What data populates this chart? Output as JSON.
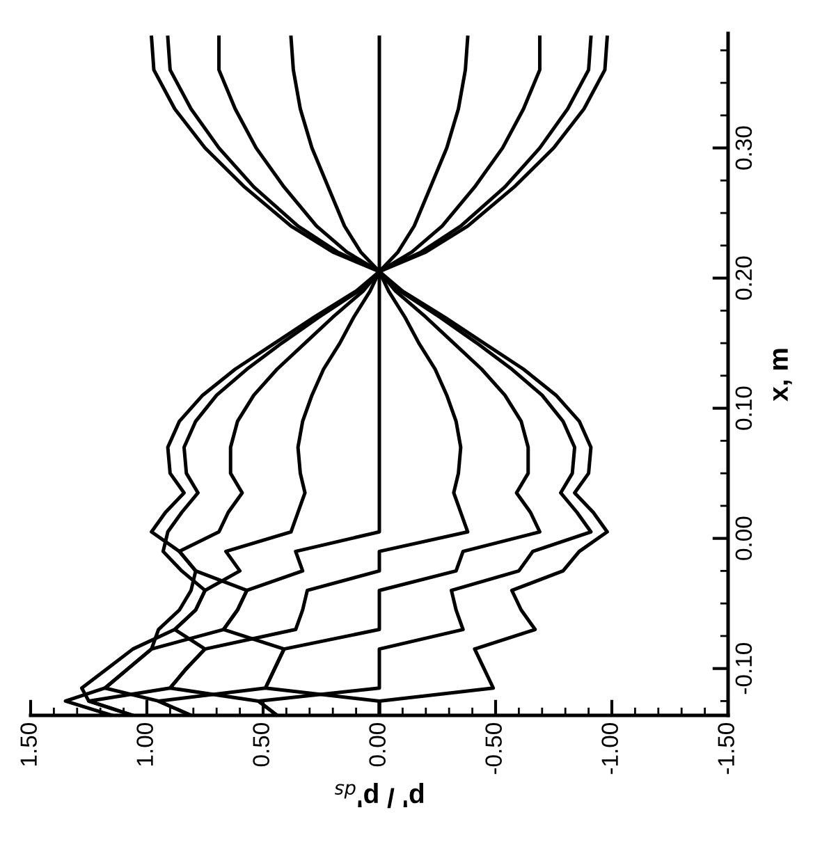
{
  "chart_data": {
    "type": "line",
    "xlabel": "p' / p'$_{ds}$",
    "ylabel": "x, m",
    "xlim": [
      1.5,
      -1.5
    ],
    "xticks": [
      {
        "value": -1.5,
        "label": "-1.50"
      },
      {
        "value": -1.4,
        "label": null
      },
      {
        "value": -1.3,
        "label": null
      },
      {
        "value": -1.2,
        "label": null
      },
      {
        "value": -1.1,
        "label": null
      },
      {
        "value": -1.0,
        "label": "-1.00"
      },
      {
        "value": -0.9,
        "label": null
      },
      {
        "value": -0.8,
        "label": null
      },
      {
        "value": -0.7,
        "label": null
      },
      {
        "value": -0.6,
        "label": null
      },
      {
        "value": -0.5,
        "label": "-0.50"
      },
      {
        "value": -0.4,
        "label": null
      },
      {
        "value": -0.3,
        "label": null
      },
      {
        "value": -0.2,
        "label": null
      },
      {
        "value": -0.1,
        "label": null
      },
      {
        "value": 0.0,
        "label": "0.00"
      },
      {
        "value": 0.1,
        "label": null
      },
      {
        "value": 0.2,
        "label": null
      },
      {
        "value": 0.3,
        "label": null
      },
      {
        "value": 0.4,
        "label": null
      },
      {
        "value": 0.5,
        "label": "0.50"
      },
      {
        "value": 0.6,
        "label": null
      },
      {
        "value": 0.7,
        "label": null
      },
      {
        "value": 0.8,
        "label": null
      },
      {
        "value": 0.9,
        "label": null
      },
      {
        "value": 1.0,
        "label": "1.00"
      },
      {
        "value": 1.1,
        "label": null
      },
      {
        "value": 1.2,
        "label": null
      },
      {
        "value": 1.3,
        "label": null
      },
      {
        "value": 1.4,
        "label": null
      },
      {
        "value": 1.5,
        "label": "1.50"
      }
    ],
    "ylim": [
      -0.136,
      0.388
    ],
    "yticks": [
      {
        "value": -0.125,
        "label": null
      },
      {
        "value": -0.1,
        "label": "-0.10"
      },
      {
        "value": -0.075,
        "label": null
      },
      {
        "value": -0.05,
        "label": null
      },
      {
        "value": -0.025,
        "label": null
      },
      {
        "value": 0.0,
        "label": "0.00"
      },
      {
        "value": 0.025,
        "label": null
      },
      {
        "value": 0.05,
        "label": null
      },
      {
        "value": 0.075,
        "label": null
      },
      {
        "value": 0.1,
        "label": "0.10"
      },
      {
        "value": 0.125,
        "label": null
      },
      {
        "value": 0.15,
        "label": null
      },
      {
        "value": 0.175,
        "label": null
      },
      {
        "value": 0.2,
        "label": "0.20"
      },
      {
        "value": 0.225,
        "label": null
      },
      {
        "value": 0.25,
        "label": null
      },
      {
        "value": 0.275,
        "label": null
      },
      {
        "value": 0.3,
        "label": "0.30"
      },
      {
        "value": 0.325,
        "label": null
      },
      {
        "value": 0.35,
        "label": null
      },
      {
        "value": 0.375,
        "label": null
      }
    ],
    "grid": false,
    "marker": "none",
    "line_style": "solid",
    "series": [
      {
        "color": "#000000",
        "x": [
          0,
          0,
          0.49,
          0.45,
          0.41,
          0.67,
          0.61,
          0.57,
          0.79,
          0.86,
          0.98,
          0.92,
          0.84,
          0.9,
          0.91,
          0.86,
          0.76,
          0.62,
          0.45,
          0.28,
          0.1,
          0,
          -0.2,
          -0.38,
          -0.58,
          -0.75,
          -0.88,
          -0.97,
          -0.98
        ],
        "values": [
          -0.136,
          -0.125,
          -0.115,
          -0.1,
          -0.085,
          -0.07,
          -0.055,
          -0.04,
          -0.025,
          -0.01,
          0.005,
          0.02,
          0.035,
          0.05,
          0.07,
          0.09,
          0.11,
          0.13,
          0.15,
          0.17,
          0.19,
          0.205,
          0.22,
          0.24,
          0.27,
          0.3,
          0.33,
          0.36,
          0.385
        ]
      },
      {
        "color": "#000000",
        "x": [
          0.44,
          0.52,
          0.9,
          0.83,
          0.75,
          0.88,
          0.79,
          0.75,
          0.85,
          0.93,
          0.91,
          0.85,
          0.78,
          0.83,
          0.84,
          0.79,
          0.7,
          0.57,
          0.42,
          0.26,
          0.09,
          0,
          -0.18,
          -0.35,
          -0.54,
          -0.69,
          -0.81,
          -0.9,
          -0.91
        ],
        "values": [
          -0.136,
          -0.125,
          -0.115,
          -0.1,
          -0.085,
          -0.07,
          -0.055,
          -0.04,
          -0.025,
          -0.01,
          0.005,
          0.02,
          0.035,
          0.05,
          0.07,
          0.09,
          0.11,
          0.13,
          0.15,
          0.17,
          0.19,
          0.205,
          0.22,
          0.24,
          0.27,
          0.3,
          0.33,
          0.36,
          0.385
        ]
      },
      {
        "color": "#000000",
        "x": [
          0.81,
          0.95,
          1.18,
          1.08,
          0.98,
          0.95,
          0.86,
          0.81,
          0.79,
          0.86,
          0.69,
          0.65,
          0.59,
          0.64,
          0.64,
          0.61,
          0.54,
          0.44,
          0.32,
          0.2,
          0.07,
          0,
          -0.14,
          -0.27,
          -0.41,
          -0.53,
          -0.62,
          -0.69,
          -0.69
        ],
        "values": [
          -0.136,
          -0.125,
          -0.115,
          -0.1,
          -0.085,
          -0.07,
          -0.055,
          -0.04,
          -0.025,
          -0.01,
          0.005,
          0.02,
          0.035,
          0.05,
          0.07,
          0.09,
          0.11,
          0.13,
          0.15,
          0.17,
          0.19,
          0.205,
          0.22,
          0.24,
          0.27,
          0.3,
          0.33,
          0.36,
          0.385
        ]
      },
      {
        "color": "#000000",
        "x": [
          1.06,
          1.25,
          1.28,
          1.17,
          1.06,
          0.88,
          0.79,
          0.75,
          0.6,
          0.66,
          0.38,
          0.35,
          0.32,
          0.34,
          0.35,
          0.33,
          0.29,
          0.24,
          0.17,
          0.11,
          0.04,
          0,
          -0.08,
          -0.15,
          -0.22,
          -0.29,
          -0.34,
          -0.37,
          -0.38
        ],
        "values": [
          -0.136,
          -0.125,
          -0.115,
          -0.1,
          -0.085,
          -0.07,
          -0.055,
          -0.04,
          -0.025,
          -0.01,
          0.005,
          0.02,
          0.035,
          0.05,
          0.07,
          0.09,
          0.11,
          0.13,
          0.15,
          0.17,
          0.19,
          0.205,
          0.22,
          0.24,
          0.27,
          0.3,
          0.33,
          0.36,
          0.385
        ]
      },
      {
        "color": "#000000",
        "x": [
          1.15,
          1.35,
          1.18,
          1.08,
          0.98,
          0.67,
          0.61,
          0.57,
          0.33,
          0.36,
          0,
          0,
          0,
          0,
          0,
          0,
          0,
          0,
          0,
          0,
          0,
          0,
          0,
          0,
          0,
          0,
          0,
          0,
          0
        ],
        "values": [
          -0.136,
          -0.125,
          -0.115,
          -0.1,
          -0.085,
          -0.07,
          -0.055,
          -0.04,
          -0.025,
          -0.01,
          0.005,
          0.02,
          0.035,
          0.05,
          0.07,
          0.09,
          0.11,
          0.13,
          0.15,
          0.17,
          0.19,
          0.205,
          0.22,
          0.24,
          0.27,
          0.3,
          0.33,
          0.36,
          0.385
        ]
      },
      {
        "color": "#000000",
        "x": [
          1.06,
          1.25,
          0.9,
          0.83,
          0.75,
          0.36,
          0.33,
          0.31,
          0,
          0,
          -0.38,
          -0.35,
          -0.32,
          -0.34,
          -0.35,
          -0.33,
          -0.29,
          -0.24,
          -0.17,
          -0.11,
          -0.04,
          0,
          0.08,
          0.15,
          0.22,
          0.29,
          0.34,
          0.37,
          0.38
        ],
        "values": [
          -0.136,
          -0.125,
          -0.115,
          -0.1,
          -0.085,
          -0.07,
          -0.055,
          -0.04,
          -0.025,
          -0.01,
          0.005,
          0.02,
          0.035,
          0.05,
          0.07,
          0.09,
          0.11,
          0.13,
          0.15,
          0.17,
          0.19,
          0.205,
          0.22,
          0.24,
          0.27,
          0.3,
          0.33,
          0.36,
          0.385
        ]
      },
      {
        "color": "#000000",
        "x": [
          0.81,
          0.95,
          0.49,
          0.45,
          0.41,
          0,
          0,
          0,
          -0.33,
          -0.36,
          -0.69,
          -0.65,
          -0.59,
          -0.64,
          -0.64,
          -0.61,
          -0.54,
          -0.44,
          -0.32,
          -0.2,
          -0.07,
          0,
          0.14,
          0.27,
          0.41,
          0.53,
          0.62,
          0.69,
          0.69
        ],
        "values": [
          -0.136,
          -0.125,
          -0.115,
          -0.1,
          -0.085,
          -0.07,
          -0.055,
          -0.04,
          -0.025,
          -0.01,
          0.005,
          0.02,
          0.035,
          0.05,
          0.07,
          0.09,
          0.11,
          0.13,
          0.15,
          0.17,
          0.19,
          0.205,
          0.22,
          0.24,
          0.27,
          0.3,
          0.33,
          0.36,
          0.385
        ]
      },
      {
        "color": "#000000",
        "x": [
          0.44,
          0.52,
          0,
          0,
          0,
          -0.36,
          -0.33,
          -0.31,
          -0.6,
          -0.66,
          -0.91,
          -0.85,
          -0.78,
          -0.83,
          -0.84,
          -0.79,
          -0.7,
          -0.57,
          -0.42,
          -0.26,
          -0.09,
          0,
          0.18,
          0.35,
          0.54,
          0.69,
          0.81,
          0.9,
          0.91
        ],
        "values": [
          -0.136,
          -0.125,
          -0.115,
          -0.1,
          -0.085,
          -0.07,
          -0.055,
          -0.04,
          -0.025,
          -0.01,
          0.005,
          0.02,
          0.035,
          0.05,
          0.07,
          0.09,
          0.11,
          0.13,
          0.15,
          0.17,
          0.19,
          0.205,
          0.22,
          0.24,
          0.27,
          0.3,
          0.33,
          0.36,
          0.385
        ]
      },
      {
        "color": "#000000",
        "x": [
          0,
          0,
          -0.49,
          -0.45,
          -0.41,
          -0.67,
          -0.61,
          -0.57,
          -0.79,
          -0.86,
          -0.98,
          -0.92,
          -0.84,
          -0.9,
          -0.91,
          -0.86,
          -0.76,
          -0.62,
          -0.45,
          -0.28,
          -0.1,
          0,
          0.2,
          0.38,
          0.58,
          0.75,
          0.88,
          0.97,
          0.98
        ],
        "values": [
          -0.136,
          -0.125,
          -0.115,
          -0.1,
          -0.085,
          -0.07,
          -0.055,
          -0.04,
          -0.025,
          -0.01,
          0.005,
          0.02,
          0.035,
          0.05,
          0.07,
          0.09,
          0.11,
          0.13,
          0.15,
          0.17,
          0.19,
          0.205,
          0.22,
          0.24,
          0.27,
          0.3,
          0.33,
          0.36,
          0.385
        ]
      }
    ]
  }
}
